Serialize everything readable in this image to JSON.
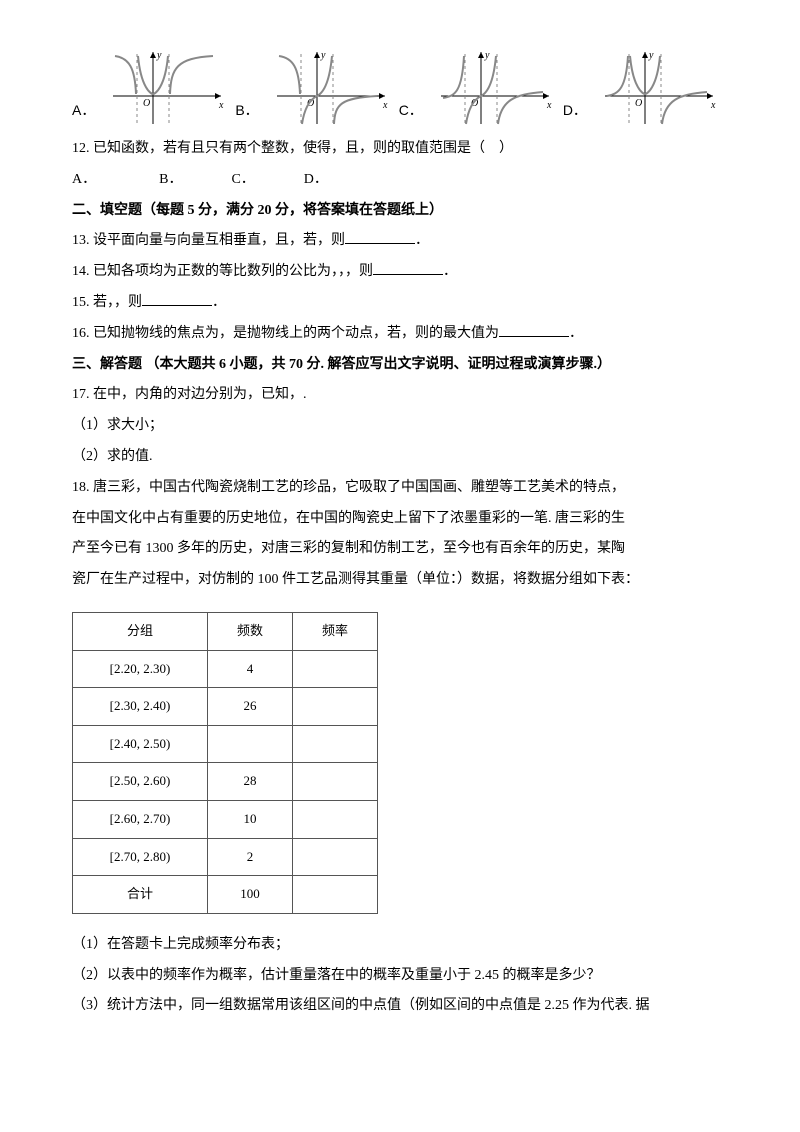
{
  "graph_row": {
    "labels": [
      "A．",
      "B．",
      "C．",
      "D．"
    ],
    "axis_color": "#000000",
    "curve_color": "#808080",
    "asymptote_dash": "3,3",
    "svg": {
      "w": 120,
      "h": 80,
      "ox": 46,
      "oy": 48
    }
  },
  "q12": {
    "text": "12. 已知函数，若有且只有两个整数，使得，且，则的取值范围是（　）",
    "choices_line": "A．　　　　　B．　　　　C．　　　　D．"
  },
  "section2_header": "二、填空题（每题 5 分，满分 20 分，将答案填在答题纸上）",
  "q13_a": "13. 设平面向量与向量互相垂直，且，若，则",
  "q13_b": "．",
  "q14_a": "14. 已知各项均为正数的等比数列的公比为，，，则",
  "q14_b": "．",
  "q15_a": "15. 若，，则",
  "q15_b": "．",
  "q16_a": "16. 已知抛物线的焦点为，是抛物线上的两个动点，若，则的最大值为",
  "q16_b": "．",
  "section3_header": "三、解答题 （本大题共 6 小题，共 70 分. 解答应写出文字说明、证明过程或演算步骤.）",
  "q17_a": "17. 在中，内角的对边分别为，已知，.",
  "q17_1": "（1）求大小；",
  "q17_2": "（2）求的值.",
  "q18_p1": "18. 唐三彩，中国古代陶瓷烧制工艺的珍品，它吸取了中国国画、雕塑等工艺美术的特点，",
  "q18_p2": "在中国文化中占有重要的历史地位，在中国的陶瓷史上留下了浓墨重彩的一笔. 唐三彩的生",
  "q18_p3": "产至今已有 1300 多年的历史，对唐三彩的复制和仿制工艺，至今也有百余年的历史，某陶",
  "q18_p4": "瓷厂在生产过程中，对仿制的 100 件工艺品测得其重量（单位：）数据，将数据分组如下表：",
  "freq_table": {
    "headers": [
      "分组",
      "频数",
      "频率"
    ],
    "rows": [
      [
        "[2.20, 2.30)",
        "4",
        ""
      ],
      [
        "[2.30, 2.40)",
        "26",
        ""
      ],
      [
        "[2.40, 2.50)",
        "",
        ""
      ],
      [
        "[2.50, 2.60)",
        "28",
        ""
      ],
      [
        "[2.60, 2.70)",
        "10",
        ""
      ],
      [
        "[2.70, 2.80)",
        "2",
        ""
      ],
      [
        "合计",
        "100",
        ""
      ]
    ]
  },
  "q18_1": "（1）在答题卡上完成频率分布表；",
  "q18_2": "（2）以表中的频率作为概率，估计重量落在中的概率及重量小于 2.45 的概率是多少？",
  "q18_3": "（3）统计方法中，同一组数据常用该组区间的中点值（例如区间的中点值是 2.25 作为代表. 据"
}
